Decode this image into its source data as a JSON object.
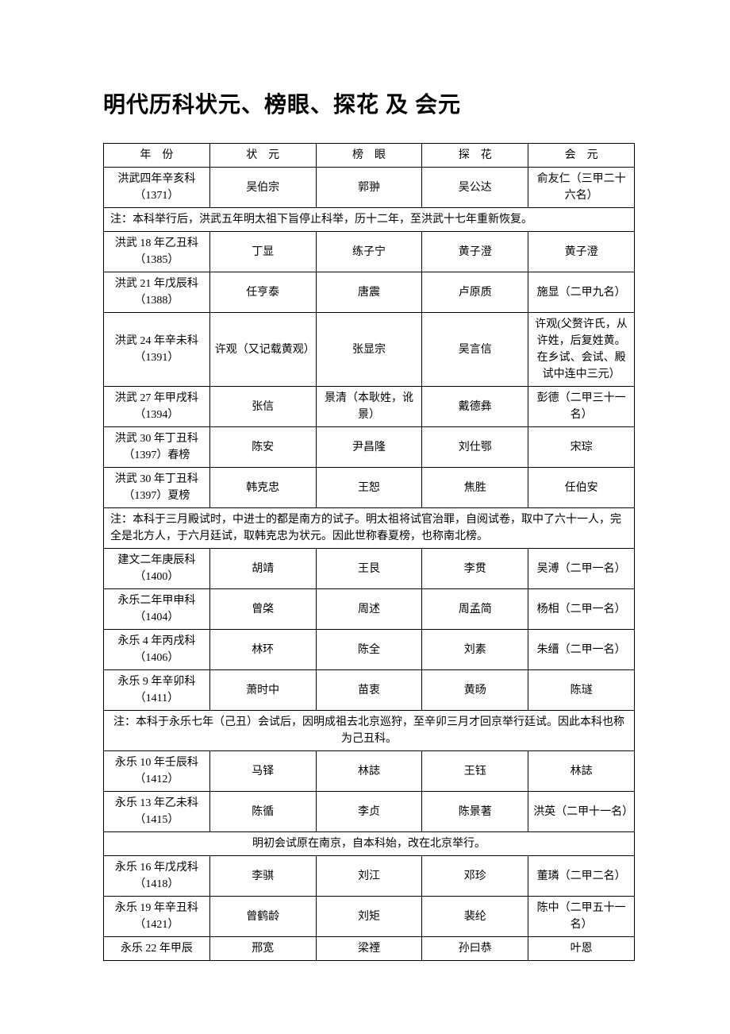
{
  "title": "明代历科状元、榜眼、探花 及 会元",
  "headers": {
    "year": "年　份",
    "zhuangyuan": "状　元",
    "bangyan": "榜　眼",
    "tanhua": "探　花",
    "huiyuan": "会　元"
  },
  "rows": [
    {
      "type": "data",
      "year": "洪武四年辛亥科（1371）",
      "zy": "吴伯宗",
      "by": "郭翀",
      "th": "吴公达",
      "hy": "俞友仁（三甲二十六名）"
    },
    {
      "type": "note",
      "text": "注：本科举行后，洪武五年明太祖下旨停止科举，历十二年，至洪武十七年重新恢复。"
    },
    {
      "type": "data",
      "year": "洪武 18 年乙丑科（1385）",
      "zy": "丁显",
      "by": "练子宁",
      "th": "黄子澄",
      "hy": "黄子澄"
    },
    {
      "type": "data",
      "year": "洪武 21 年戊辰科（1388）",
      "zy": "任亨泰",
      "by": "唐震",
      "th": "卢原质",
      "hy": "施显（二甲九名）"
    },
    {
      "type": "data",
      "year": "洪武 24 年辛未科（1391）",
      "zy": "许观（又记载黄观）",
      "by": "张显宗",
      "th": "吴言信",
      "hy": "许观(父赘许氏，从许姓，后复姓黄。在乡试、会试、殿试中连中三元）"
    },
    {
      "type": "data",
      "year": "洪武 27 年甲戌科（1394）",
      "zy": "张信",
      "by": "景清（本耿姓，讹景）",
      "th": "戴德彝",
      "hy": "彭德（二甲三十一名）"
    },
    {
      "type": "data",
      "year": "洪武 30 年丁丑科（1397）春榜",
      "zy": "陈安",
      "by": "尹昌隆",
      "th": "刘仕鄂",
      "hy": "宋琮"
    },
    {
      "type": "data",
      "year": "洪武 30 年丁丑科（1397）夏榜",
      "zy": "韩克忠",
      "by": "王恕",
      "th": "焦胜",
      "hy": "任伯安"
    },
    {
      "type": "note",
      "text": "注：本科于三月殿试时，中进士的都是南方的试子。明太祖将试官治罪，自阅试卷，取中了六十一人，完全是北方人，于六月廷试，取韩克忠为状元。因此世称春夏榜，也称南北榜。"
    },
    {
      "type": "data",
      "year": "建文二年庚辰科（1400）",
      "zy": "胡靖",
      "by": "王艮",
      "th": "李贯",
      "hy": "吴溥（二甲一名）"
    },
    {
      "type": "data",
      "year": "永乐二年甲申科（1404）",
      "zy": "曾棨",
      "by": "周述",
      "th": "周孟简",
      "hy": "杨相（二甲一名）"
    },
    {
      "type": "data",
      "year": "永乐 4 年丙戌科（1406）",
      "zy": "林环",
      "by": "陈全",
      "th": "刘素",
      "hy": "朱缙（二甲一名）"
    },
    {
      "type": "data",
      "year": "永乐 9 年辛卯科（1411）",
      "zy": "萧时中",
      "by": "苗衷",
      "th": "黄旸",
      "hy": "陈璲"
    },
    {
      "type": "note-center",
      "text": "注：本科于永乐七年（己丑）会试后，因明成祖去北京巡狩，至辛卯三月才回京举行廷试。因此本科也称为己丑科。"
    },
    {
      "type": "data",
      "year": "永乐 10 年壬辰科（1412）",
      "zy": "马铎",
      "by": "林誌",
      "th": "王钰",
      "hy": "林誌"
    },
    {
      "type": "data",
      "year": "永乐 13 年乙未科（1415）",
      "zy": "陈循",
      "by": "李贞",
      "th": "陈景著",
      "hy": "洪英（二甲十一名）"
    },
    {
      "type": "note-center",
      "text": "明初会试原在南京，自本科始，改在北京举行。"
    },
    {
      "type": "data",
      "year": "永乐 16 年戊戌科（1418）",
      "zy": "李骐",
      "by": "刘江",
      "th": "邓珍",
      "hy": "董璘（二甲二名）"
    },
    {
      "type": "data",
      "year": "永乐 19 年辛丑科（1421）",
      "zy": "曾鹤龄",
      "by": "刘矩",
      "th": "裴纶",
      "hy": "陈中（二甲五十一名）"
    },
    {
      "type": "data",
      "year": "永乐 22 年甲辰",
      "zy": "邢宽",
      "by": "梁禋",
      "th": "孙曰恭",
      "hy": "叶恩"
    }
  ]
}
